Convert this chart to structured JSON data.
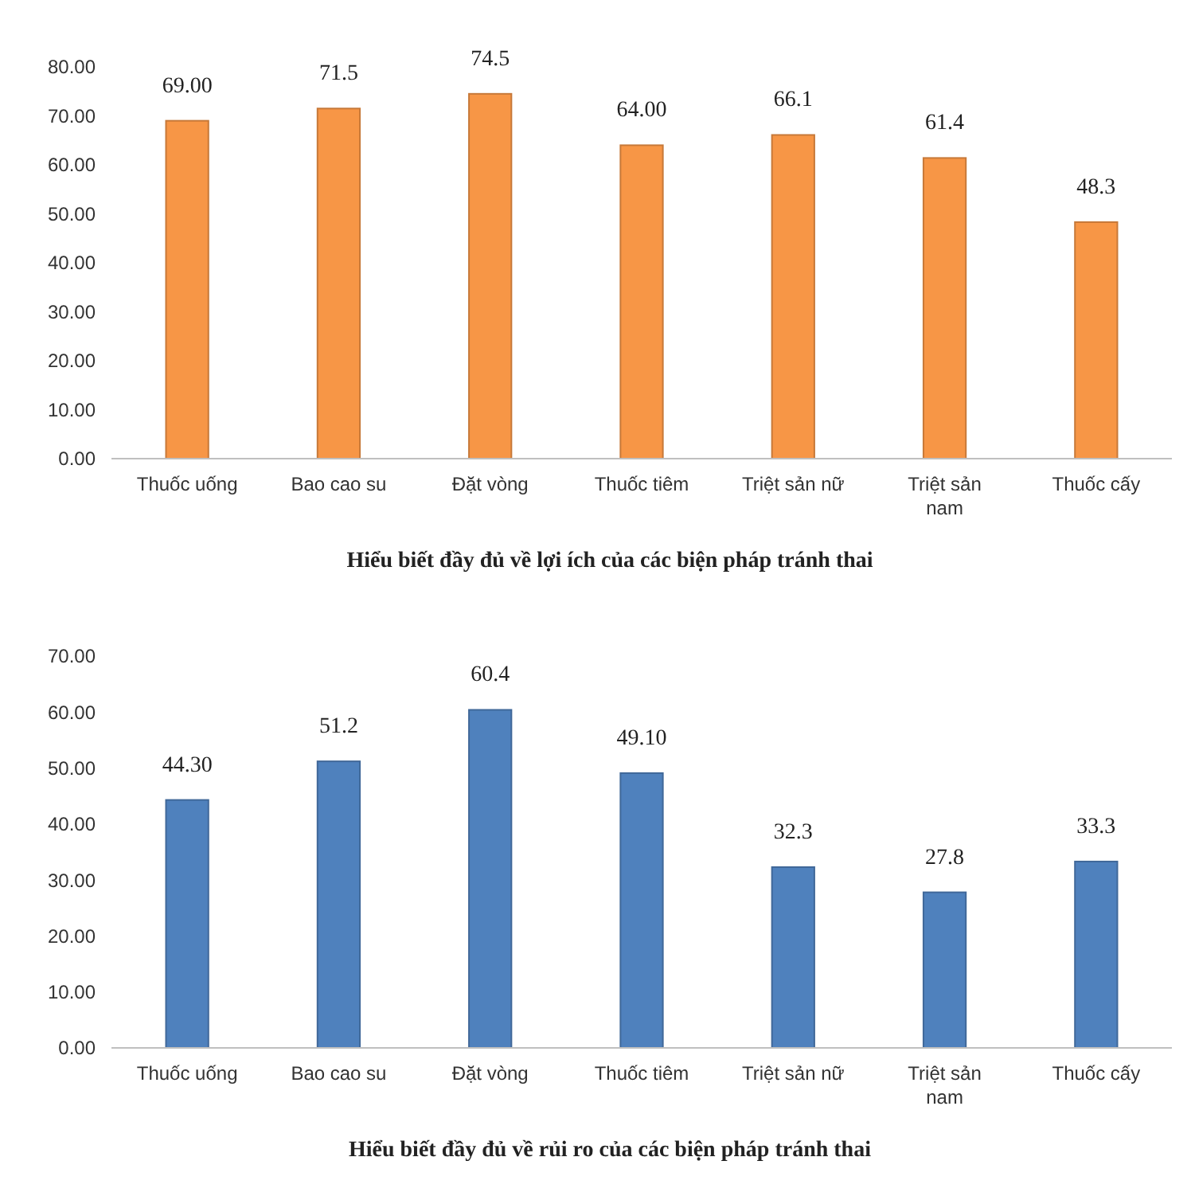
{
  "chart_data": [
    {
      "type": "bar",
      "title": "Hiểu biết đầy đủ về lợi ích của các biện pháp tránh thai",
      "categories": [
        "Thuốc uống",
        "Bao cao su",
        "Đặt vòng",
        "Thuốc tiêm",
        "Triệt sản nữ",
        "Triệt sản nam",
        "Thuốc cấy"
      ],
      "values": [
        69.0,
        71.5,
        74.5,
        64.0,
        66.1,
        61.4,
        48.3
      ],
      "value_labels": [
        "69.00",
        "71.5",
        "74.5",
        "64.00",
        "66.1",
        "61.4",
        "48.3"
      ],
      "color": "#f79646",
      "ylim": [
        0,
        80
      ],
      "tick_labels": true,
      "yticks": [
        {
          "value": 0,
          "label": "0.00"
        },
        {
          "value": 10,
          "label": "10.00"
        },
        {
          "value": 20,
          "label": "20.00"
        },
        {
          "value": 30,
          "label": "30.00"
        },
        {
          "value": 40,
          "label": "40.00"
        },
        {
          "value": 50,
          "label": "50.00"
        },
        {
          "value": 60,
          "label": "60.00"
        },
        {
          "value": 70,
          "label": "70.00"
        },
        {
          "value": 80,
          "label": "80.00"
        }
      ]
    },
    {
      "type": "bar",
      "title": "Hiểu biết đầy đủ về rủi ro của các biện pháp tránh thai",
      "categories": [
        "Thuốc uống",
        "Bao cao su",
        "Đặt vòng",
        "Thuốc tiêm",
        "Triệt sản nữ",
        "Triệt sản nam",
        "Thuốc cấy"
      ],
      "values": [
        44.3,
        51.2,
        60.4,
        49.1,
        32.3,
        27.8,
        33.3
      ],
      "value_labels": [
        "44.30",
        "51.2",
        "60.4",
        "49.10",
        "32.3",
        "27.8",
        "33.3"
      ],
      "color": "#4f81bd",
      "ylim": [
        0,
        70
      ],
      "yticks": [
        {
          "value": 0,
          "label": "0.00"
        },
        {
          "value": 10,
          "label": "10.00"
        },
        {
          "value": 20,
          "label": "20.00"
        },
        {
          "value": 30,
          "label": "30.00"
        },
        {
          "value": 40,
          "label": "40.00"
        },
        {
          "value": 50,
          "label": "50.00"
        },
        {
          "value": 60,
          "label": "60.00"
        },
        {
          "value": 70,
          "label": "70.00"
        }
      ]
    }
  ]
}
